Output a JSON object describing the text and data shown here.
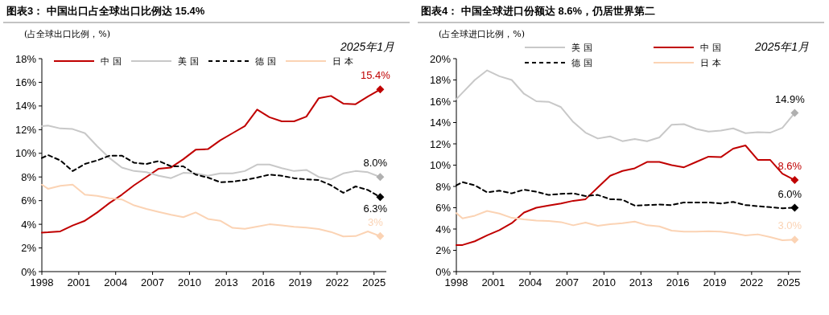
{
  "chart_data": [
    {
      "type": "line",
      "title": "图表3：  中国出口占全球出口比例达 15.4%",
      "ylabel": "(占全球出口比例，%)",
      "x": [
        1998,
        1998.5,
        1999.5,
        2000.5,
        2001.5,
        2002.5,
        2003.5,
        2004.5,
        2005.5,
        2006.5,
        2007.5,
        2008.5,
        2009.5,
        2010.5,
        2011.5,
        2012.5,
        2013.5,
        2014.5,
        2015.5,
        2016.5,
        2017.5,
        2018.5,
        2019.5,
        2020.5,
        2021.5,
        2022.5,
        2023.5,
        2024.5,
        2025.5
      ],
      "series": [
        {
          "name": "中国",
          "color": "#c00000",
          "line_style": "solid",
          "values": [
            3.3,
            3.32,
            3.4,
            3.9,
            4.3,
            5.0,
            5.8,
            6.5,
            7.3,
            8.0,
            8.7,
            8.8,
            9.5,
            10.3,
            10.35,
            11.1,
            11.7,
            12.3,
            13.7,
            13.05,
            12.7,
            12.7,
            13.1,
            14.65,
            14.85,
            14.2,
            14.15,
            14.8,
            15.4
          ],
          "value_labels": [
            null,
            null,
            null,
            null,
            null,
            null,
            null,
            null,
            null,
            null,
            null,
            null,
            null,
            null,
            null,
            null,
            null,
            null,
            null,
            null,
            null,
            null,
            null,
            null,
            null,
            null,
            null,
            null,
            "15.4%"
          ]
        },
        {
          "name": "美国",
          "color": "#c8c8c8",
          "line_style": "solid",
          "values": [
            12.3,
            12.35,
            12.1,
            12.05,
            11.7,
            10.6,
            9.6,
            8.8,
            8.5,
            8.4,
            8.1,
            7.9,
            8.35,
            8.3,
            8.1,
            8.3,
            8.3,
            8.5,
            9.05,
            9.05,
            8.75,
            8.5,
            8.6,
            8.0,
            7.8,
            8.3,
            8.5,
            8.4,
            8.0
          ],
          "value_labels": [
            null,
            null,
            null,
            null,
            null,
            null,
            null,
            null,
            null,
            null,
            null,
            null,
            null,
            null,
            null,
            null,
            null,
            null,
            null,
            null,
            null,
            null,
            null,
            null,
            null,
            null,
            null,
            null,
            "8.0%"
          ]
        },
        {
          "name": "德国",
          "color": "#000000",
          "line_style": "dashed",
          "values": [
            9.6,
            9.85,
            9.4,
            8.5,
            9.1,
            9.4,
            9.8,
            9.8,
            9.2,
            9.1,
            9.35,
            8.9,
            8.9,
            8.2,
            7.95,
            7.56,
            7.6,
            7.75,
            7.95,
            8.2,
            8.1,
            7.9,
            7.8,
            7.75,
            7.3,
            6.66,
            7.2,
            6.9,
            6.3
          ],
          "value_labels": [
            null,
            null,
            null,
            null,
            null,
            null,
            null,
            null,
            null,
            null,
            null,
            null,
            null,
            null,
            null,
            null,
            null,
            null,
            null,
            null,
            null,
            null,
            null,
            null,
            null,
            null,
            null,
            null,
            "6.3%"
          ]
        },
        {
          "name": "日本",
          "color": "#fbd3b4",
          "line_style": "solid",
          "values": [
            7.35,
            7.0,
            7.25,
            7.35,
            6.5,
            6.4,
            6.2,
            6.1,
            5.6,
            5.3,
            5.05,
            4.8,
            4.6,
            5.0,
            4.45,
            4.3,
            3.7,
            3.62,
            3.8,
            4.0,
            3.9,
            3.78,
            3.72,
            3.6,
            3.35,
            2.97,
            3.0,
            3.4,
            3.0
          ],
          "value_labels": [
            null,
            null,
            null,
            null,
            null,
            null,
            null,
            null,
            null,
            null,
            null,
            null,
            null,
            null,
            null,
            null,
            null,
            null,
            null,
            null,
            null,
            null,
            null,
            null,
            null,
            null,
            null,
            null,
            "3%"
          ]
        }
      ],
      "xlim": [
        1998,
        2026
      ],
      "xticks": [
        1998,
        2001,
        2004,
        2007,
        2010,
        2013,
        2016,
        2019,
        2022,
        2025
      ],
      "ylim": [
        0,
        18
      ],
      "yticks": [
        {
          "value": 0,
          "label": "0%"
        },
        {
          "value": 2,
          "label": "2%"
        },
        {
          "value": 4,
          "label": "4%"
        },
        {
          "value": 6,
          "label": "6%"
        },
        {
          "value": 8,
          "label": "8%"
        },
        {
          "value": 10,
          "label": "10%"
        },
        {
          "value": 12,
          "label": "12%"
        },
        {
          "value": 14,
          "label": "14%"
        },
        {
          "value": 16,
          "label": "16%"
        },
        {
          "value": 18,
          "label": "18%"
        }
      ],
      "grid": false,
      "legend": "top",
      "annotations": [
        "2025年1月"
      ]
    },
    {
      "type": "line",
      "title": "图表4：  中国全球进口份额达 8.6%，仍居世界第二",
      "ylabel": "(占全球进口比例，%)",
      "x": [
        1998,
        1998.5,
        1999.5,
        2000.5,
        2001.5,
        2002.5,
        2003.5,
        2004.5,
        2005.5,
        2006.5,
        2007.5,
        2008.5,
        2009.5,
        2010.5,
        2011.5,
        2012.5,
        2013.5,
        2014.5,
        2015.5,
        2016.5,
        2017.5,
        2018.5,
        2019.5,
        2020.5,
        2021.5,
        2022.5,
        2023.5,
        2024.5,
        2025.5
      ],
      "series": [
        {
          "name": "美国",
          "color": "#c8c8c8",
          "line_style": "solid",
          "values": [
            16.2,
            16.8,
            18.0,
            18.9,
            18.35,
            18.0,
            16.7,
            16.0,
            15.95,
            15.45,
            14.05,
            13.05,
            12.5,
            12.7,
            12.25,
            12.45,
            12.25,
            12.6,
            13.8,
            13.85,
            13.4,
            13.15,
            13.25,
            13.45,
            13.0,
            13.1,
            13.05,
            13.5,
            14.9
          ],
          "value_labels": [
            null,
            null,
            null,
            null,
            null,
            null,
            null,
            null,
            null,
            null,
            null,
            null,
            null,
            null,
            null,
            null,
            null,
            null,
            null,
            null,
            null,
            null,
            null,
            null,
            null,
            null,
            null,
            null,
            "14.9%"
          ]
        },
        {
          "name": "中国",
          "color": "#c00000",
          "line_style": "solid",
          "values": [
            2.5,
            2.5,
            2.85,
            3.4,
            3.9,
            4.55,
            5.55,
            6.0,
            6.2,
            6.4,
            6.65,
            6.8,
            7.9,
            9.0,
            9.45,
            9.7,
            10.3,
            10.3,
            10.0,
            9.8,
            10.3,
            10.8,
            10.75,
            11.55,
            11.85,
            10.5,
            10.5,
            9.2,
            8.6
          ],
          "value_labels": [
            null,
            null,
            null,
            null,
            null,
            null,
            null,
            null,
            null,
            null,
            null,
            null,
            null,
            null,
            null,
            null,
            null,
            null,
            null,
            null,
            null,
            null,
            null,
            null,
            null,
            null,
            null,
            null,
            "8.6%"
          ]
        },
        {
          "name": "德国",
          "color": "#000000",
          "line_style": "dashed",
          "values": [
            8.1,
            8.4,
            8.1,
            7.45,
            7.6,
            7.35,
            7.7,
            7.5,
            7.2,
            7.3,
            7.35,
            7.1,
            7.2,
            6.8,
            6.75,
            6.2,
            6.25,
            6.3,
            6.25,
            6.5,
            6.5,
            6.5,
            6.4,
            6.55,
            6.25,
            6.15,
            6.05,
            5.95,
            6.0
          ],
          "value_labels": [
            null,
            null,
            null,
            null,
            null,
            null,
            null,
            null,
            null,
            null,
            null,
            null,
            null,
            null,
            null,
            null,
            null,
            null,
            null,
            null,
            null,
            null,
            null,
            null,
            null,
            null,
            null,
            null,
            "6.0%"
          ]
        },
        {
          "name": "日本",
          "color": "#fbd3b4",
          "line_style": "solid",
          "values": [
            5.5,
            5.0,
            5.25,
            5.7,
            5.45,
            5.05,
            4.9,
            4.8,
            4.75,
            4.65,
            4.35,
            4.6,
            4.3,
            4.45,
            4.55,
            4.7,
            4.35,
            4.25,
            3.85,
            3.75,
            3.75,
            3.8,
            3.75,
            3.6,
            3.4,
            3.5,
            3.25,
            2.95,
            3.0
          ],
          "value_labels": [
            null,
            null,
            null,
            null,
            null,
            null,
            null,
            null,
            null,
            null,
            null,
            null,
            null,
            null,
            null,
            null,
            null,
            null,
            null,
            null,
            null,
            null,
            null,
            null,
            null,
            null,
            null,
            null,
            "3.0%"
          ]
        }
      ],
      "xlim": [
        1998,
        2026
      ],
      "xticks": [
        1998,
        2001,
        2004,
        2007,
        2010,
        2013,
        2016,
        2019,
        2022,
        2025
      ],
      "ylim": [
        0,
        20
      ],
      "yticks": [
        {
          "value": 0,
          "label": "0%"
        },
        {
          "value": 2,
          "label": "2%"
        },
        {
          "value": 4,
          "label": "4%"
        },
        {
          "value": 6,
          "label": "6%"
        },
        {
          "value": 8,
          "label": "8%"
        },
        {
          "value": 10,
          "label": "10%"
        },
        {
          "value": 12,
          "label": "12%"
        },
        {
          "value": 14,
          "label": "14%"
        },
        {
          "value": 16,
          "label": "16%"
        },
        {
          "value": 18,
          "label": "18%"
        },
        {
          "value": 20,
          "label": "20%"
        }
      ],
      "grid": false,
      "legend": "top right",
      "annotations": [
        "2025年1月"
      ]
    }
  ]
}
